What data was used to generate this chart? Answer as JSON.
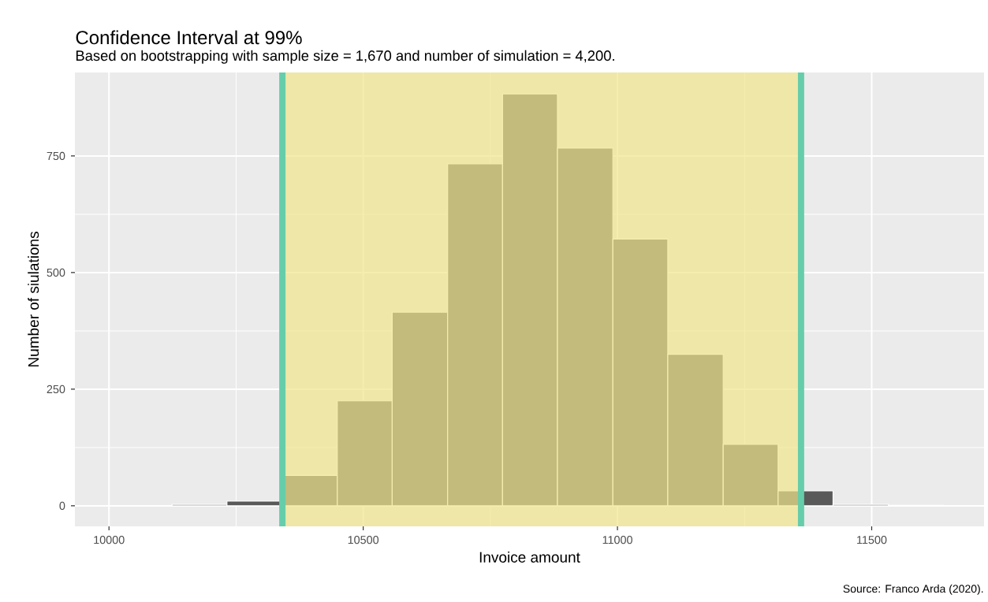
{
  "chart_data": {
    "type": "histogram",
    "title": "Confidence Interval at 99%",
    "subtitle": "Based on bootstrapping with sample size = 1,670 and number of simulation = 4,200.",
    "xlabel": "Invoice amount",
    "ylabel": "Number of siulations",
    "bins": [
      10124,
      10232,
      10341,
      10449,
      10557,
      10666,
      10774,
      10882,
      10991,
      11099,
      11208,
      11316,
      11424,
      11533,
      11641
    ],
    "values": [
      3,
      10,
      65,
      225,
      415,
      733,
      883,
      767,
      572,
      325,
      132,
      32,
      3,
      1
    ],
    "color": "#595959",
    "xlim": [
      9933,
      11721
    ],
    "ylim": [
      -44,
      929
    ],
    "xticks": [
      10000,
      10500,
      11000,
      11500
    ],
    "yticks": [
      0,
      250,
      500,
      750
    ],
    "grid": true,
    "bands": [
      {
        "axis": "x",
        "from": 10341,
        "to": 11361,
        "color": "#f0e68c"
      }
    ],
    "ref_lines": [
      {
        "axis": "x",
        "value": 10341,
        "color": "#66cdaa"
      },
      {
        "axis": "x",
        "value": 11361,
        "color": "#66cdaa"
      }
    ],
    "annotations": [
      "Source: Franco Arda (2020)."
    ]
  }
}
